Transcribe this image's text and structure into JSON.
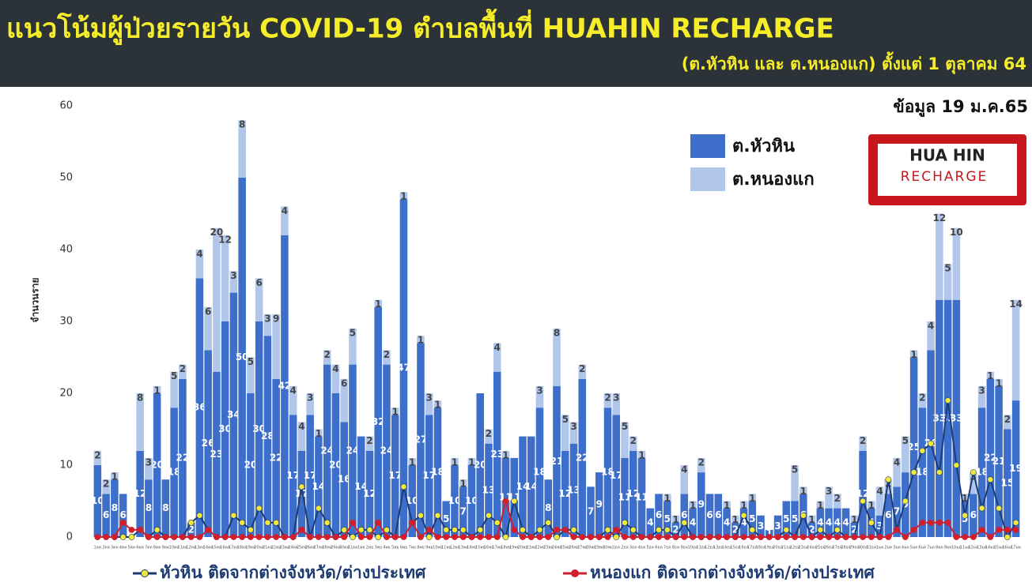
{
  "chart_data": {
    "type": "bar",
    "stacked": true,
    "title": "แนวโน้มผู้ป่วยรายวัน COVID-19 ตำบลพื้นที่ HUAHIN RECHARGE",
    "subtitle": "(ต.หัวหิน และ ต.หนองแก) ตั้งแต่ 1 ตุลาคม 64",
    "date_note": "ข้อมูล 19 ม.ค.65",
    "y_label": "จำนวนราย",
    "categories": [
      "1ตค",
      "2ตค",
      "3ตค",
      "4ตค",
      "5ตค",
      "6ตค",
      "7ตค",
      "8ตค",
      "9ตค",
      "10ตค",
      "11ตค",
      "12ตค",
      "13ตค",
      "14ตค",
      "15ตค",
      "16ตค",
      "17ตค",
      "18ตค",
      "19ตค",
      "20ตค",
      "21ตค",
      "22ตค",
      "23ตค",
      "24ตค",
      "25ตค",
      "26ตค",
      "27ตค",
      "28ตค",
      "29ตค",
      "30ตค",
      "31ตค",
      "1พย",
      "2พย",
      "3พย",
      "4พย",
      "5พย",
      "6พย",
      "7พย",
      "8พย",
      "9พย",
      "10พย",
      "11พย",
      "12พย",
      "13พย",
      "14พย",
      "15พย",
      "16พย",
      "17พย",
      "18พย",
      "19พย",
      "20พย",
      "21พย",
      "22พย",
      "23พย",
      "24พย",
      "25พย",
      "26พย",
      "27พย",
      "28พย",
      "29พย",
      "30พย",
      "1ธค",
      "2ธค",
      "3ธค",
      "4ธค",
      "5ธค",
      "6ธค",
      "7ธค",
      "8ธค",
      "9ธค",
      "10ธค",
      "11ธค",
      "12ธค",
      "13ธค",
      "14ธค",
      "15ธค",
      "16ธค",
      "17ธค",
      "18ธค",
      "19ธค",
      "20ธค",
      "21ธค",
      "22ธค",
      "23ธค",
      "24ธค",
      "25ธค",
      "26ธค",
      "27ธค",
      "28ธค",
      "29ธค",
      "30ธค",
      "31ธค",
      "1มค",
      "2มค",
      "3มค",
      "4มค",
      "5มค",
      "6มค",
      "7มค",
      "8มค",
      "9มค",
      "10มค",
      "11มค",
      "12มค",
      "13มค",
      "14มค",
      "15มค",
      "16มค",
      "17มค"
    ],
    "ylim": [
      0,
      60
    ],
    "yticks": [
      0,
      10,
      20,
      30,
      40,
      50,
      60
    ],
    "series": [
      {
        "name": "ต.หัวหิน",
        "color": "#3d6fca",
        "values": [
          10,
          6,
          8,
          6,
          0,
          12,
          8,
          20,
          8,
          18,
          22,
          2,
          36,
          26,
          23,
          30,
          34,
          50,
          20,
          30,
          28,
          22,
          42,
          17,
          12,
          17,
          14,
          24,
          20,
          16,
          24,
          14,
          12,
          32,
          24,
          17,
          47,
          10,
          27,
          17,
          18,
          5,
          10,
          7,
          10,
          20,
          13,
          23,
          11,
          11,
          14,
          14,
          18,
          8,
          21,
          12,
          13,
          22,
          7,
          9,
          18,
          17,
          11,
          12,
          11,
          4,
          6,
          5,
          2,
          6,
          4,
          9,
          6,
          6,
          4,
          2,
          4,
          5,
          3,
          1,
          3,
          5,
          5,
          6,
          2,
          4,
          4,
          4,
          4,
          2,
          12,
          4,
          3,
          6,
          7,
          9,
          25,
          18,
          26,
          33,
          33,
          33,
          5,
          6,
          18,
          22,
          21,
          15,
          19
        ]
      },
      {
        "name": "ต.หนองแก",
        "color": "#b0c6ea",
        "values": [
          2,
          2,
          1,
          0,
          0,
          8,
          3,
          1,
          0,
          5,
          2,
          0,
          4,
          6,
          20,
          12,
          3,
          8,
          5,
          6,
          3,
          9,
          4,
          4,
          4,
          3,
          1,
          2,
          4,
          6,
          5,
          0,
          2,
          1,
          2,
          1,
          1,
          1,
          1,
          3,
          1,
          0,
          1,
          1,
          1,
          0,
          2,
          4,
          1,
          0,
          0,
          0,
          3,
          0,
          8,
          5,
          3,
          2,
          0,
          0,
          2,
          3,
          5,
          2,
          1,
          0,
          0,
          1,
          1,
          4,
          1,
          2,
          0,
          0,
          1,
          1,
          1,
          1,
          0,
          0,
          0,
          0,
          5,
          1,
          1,
          1,
          3,
          2,
          0,
          1,
          2,
          1,
          4,
          2,
          4,
          5,
          1,
          2,
          4,
          12,
          5,
          10,
          1,
          3,
          3,
          1,
          1,
          2,
          14
        ]
      },
      {
        "name": "หัวหิน ติดจากต่างจังหวัด/ต่างประเทศ",
        "type": "line",
        "color": "#1d3b73",
        "marker_color": "#f1e93a",
        "values": [
          0,
          0,
          0,
          0,
          0,
          1,
          0,
          1,
          0,
          0,
          0,
          2,
          3,
          1,
          0,
          0,
          3,
          2,
          1,
          4,
          2,
          2,
          0,
          0,
          7,
          0,
          4,
          2,
          0,
          1,
          0,
          1,
          1,
          0,
          1,
          0,
          7,
          2,
          3,
          0,
          3,
          1,
          1,
          1,
          0,
          1,
          3,
          2,
          0,
          5,
          1,
          0,
          1,
          2,
          0,
          1,
          1,
          0,
          0,
          0,
          1,
          0,
          2,
          1,
          0,
          0,
          1,
          1,
          0,
          2,
          0,
          0,
          0,
          0,
          0,
          0,
          3,
          1,
          0,
          0,
          0,
          1,
          0,
          3,
          0,
          1,
          0,
          1,
          0,
          0,
          5,
          2,
          0,
          8,
          1,
          5,
          9,
          12,
          13,
          9,
          19,
          10,
          3,
          9,
          4,
          8,
          4,
          0,
          2
        ]
      },
      {
        "name": "หนองแก ติดจากต่างจังหวัด/ต่างประเทศ",
        "type": "line",
        "color": "#d21f2b",
        "marker_color": "#d21f2b",
        "values": [
          0,
          0,
          0,
          2,
          1,
          1,
          0,
          0,
          0,
          0,
          0,
          0,
          0,
          1,
          0,
          0,
          0,
          0,
          0,
          0,
          0,
          0,
          0,
          0,
          1,
          0,
          0,
          0,
          0,
          0,
          2,
          0,
          0,
          2,
          0,
          0,
          0,
          2,
          0,
          1,
          0,
          0,
          0,
          0,
          0,
          0,
          0,
          0,
          5,
          1,
          0,
          0,
          0,
          0,
          1,
          1,
          0,
          0,
          0,
          0,
          0,
          1,
          0,
          0,
          0,
          0,
          0,
          0,
          0,
          0,
          0,
          0,
          0,
          0,
          0,
          0,
          0,
          0,
          0,
          0,
          0,
          0,
          0,
          0,
          0,
          0,
          0,
          0,
          0,
          0,
          0,
          0,
          0,
          0,
          1,
          0,
          1,
          2,
          2,
          2,
          2,
          0,
          0,
          0,
          1,
          0,
          1,
          1,
          1
        ]
      }
    ]
  },
  "logo": {
    "line1": "HUA HIN",
    "line2": "RECHARGE"
  }
}
